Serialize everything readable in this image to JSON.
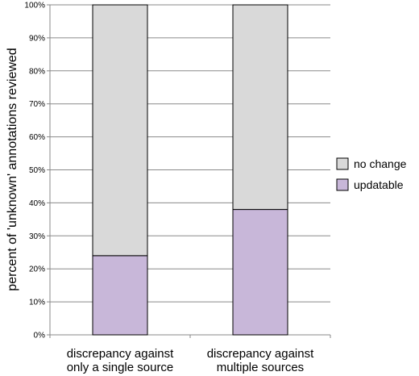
{
  "chart_data": {
    "type": "bar",
    "stacked": true,
    "categories": [
      [
        "discrepancy against",
        "only a single source"
      ],
      [
        "discrepancy against",
        "multiple sources"
      ]
    ],
    "series": [
      {
        "name": "updatable",
        "values": [
          24,
          38
        ],
        "color": "#c8b7d9"
      },
      {
        "name": "no change",
        "values": [
          76,
          62
        ],
        "color": "#d9d9d9"
      }
    ],
    "ylabel": "percent of 'unknown' annotations reviewed",
    "ylim": [
      0,
      100
    ],
    "yticks": [
      "0%",
      "10%",
      "20%",
      "30%",
      "40%",
      "50%",
      "60%",
      "70%",
      "80%",
      "90%",
      "100%"
    ],
    "grid": true,
    "legend": {
      "placement": "right",
      "entries": [
        {
          "label": "no change",
          "color": "#d9d9d9"
        },
        {
          "label": "updatable",
          "color": "#c8b7d9"
        }
      ]
    }
  }
}
